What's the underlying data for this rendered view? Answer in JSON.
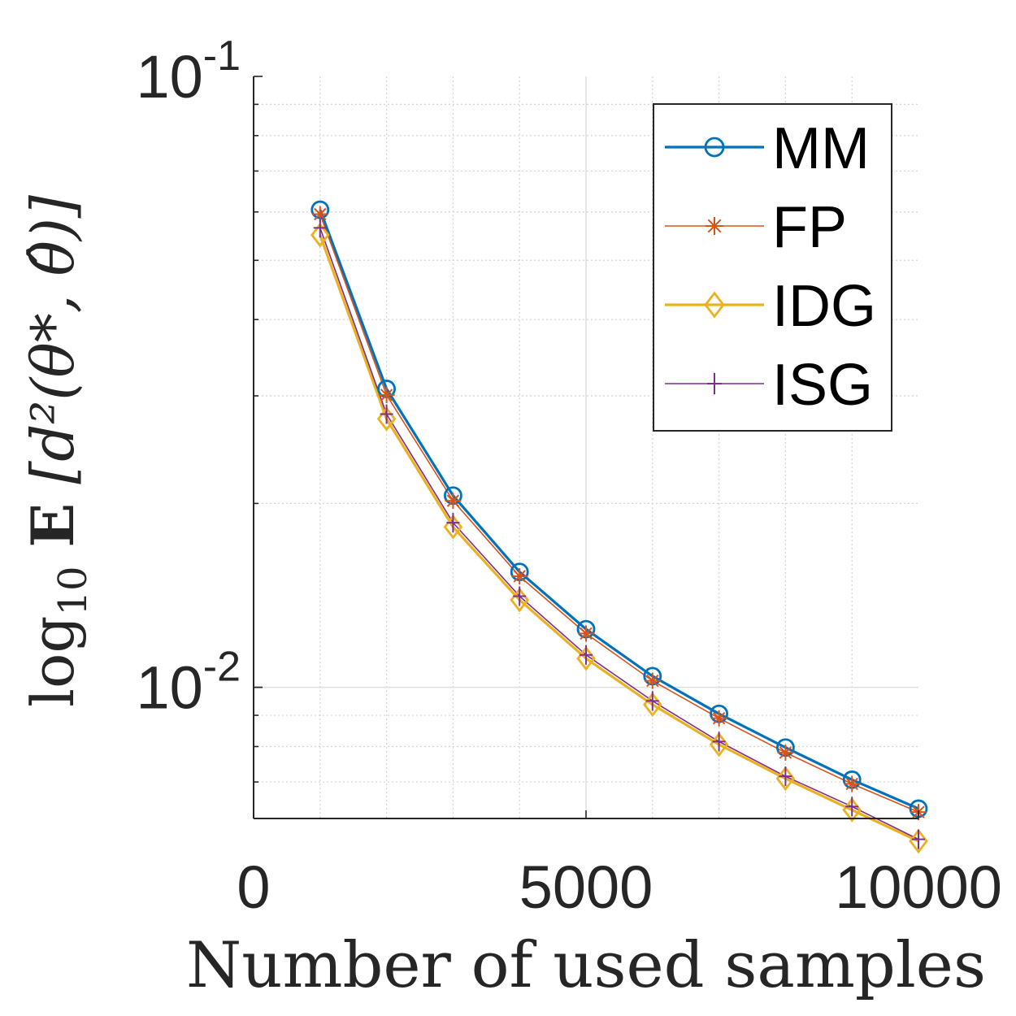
{
  "chart_data": {
    "type": "line",
    "xlabel": "Number of used samples",
    "ylabel": {
      "prefix": "log",
      "subscript": "10",
      "expectation": "E",
      "expression": "[d²(θ*, θ̂)]"
    },
    "xscale": "linear",
    "yscale": "log",
    "xlim": [
      0,
      10000
    ],
    "ylim": [
      0.0061,
      0.1
    ],
    "grid": true,
    "minor_grid": true,
    "legend_position": "top-right",
    "x_ticks": [
      {
        "value": 0,
        "label": "0"
      },
      {
        "value": 5000,
        "label": "5000"
      },
      {
        "value": 10000,
        "label": "10000"
      }
    ],
    "y_ticks": [
      {
        "value": 0.1,
        "base": "10",
        "exponent": "-1"
      },
      {
        "value": 0.01,
        "base": "10",
        "exponent": "-2"
      }
    ],
    "x": [
      1000,
      2000,
      3000,
      4000,
      5000,
      6000,
      7000,
      8000,
      9000,
      10000
    ],
    "series": [
      {
        "name": "MM",
        "color": "#0072BD",
        "marker": "circle",
        "values": [
          0.0605,
          0.0308,
          0.0206,
          0.01545,
          0.01245,
          0.01043,
          0.00905,
          0.00797,
          0.00706,
          0.00633
        ]
      },
      {
        "name": "FP",
        "color": "#D95319",
        "marker": "asterisk",
        "values": [
          0.0595,
          0.0301,
          0.0202,
          0.0152,
          0.01225,
          0.01025,
          0.0089,
          0.00782,
          0.00695,
          0.00625
        ]
      },
      {
        "name": "IDG",
        "color": "#EDB120",
        "marker": "diamond",
        "values": [
          0.055,
          0.0275,
          0.0183,
          0.0139,
          0.01115,
          0.00937,
          0.00806,
          0.00709,
          0.0063,
          0.0056
        ]
      },
      {
        "name": "ISG",
        "color": "#7E2F8E",
        "marker": "plus",
        "values": [
          0.0565,
          0.028,
          0.0186,
          0.0141,
          0.0113,
          0.0095,
          0.00815,
          0.00715,
          0.00638,
          0.00564
        ]
      }
    ]
  }
}
